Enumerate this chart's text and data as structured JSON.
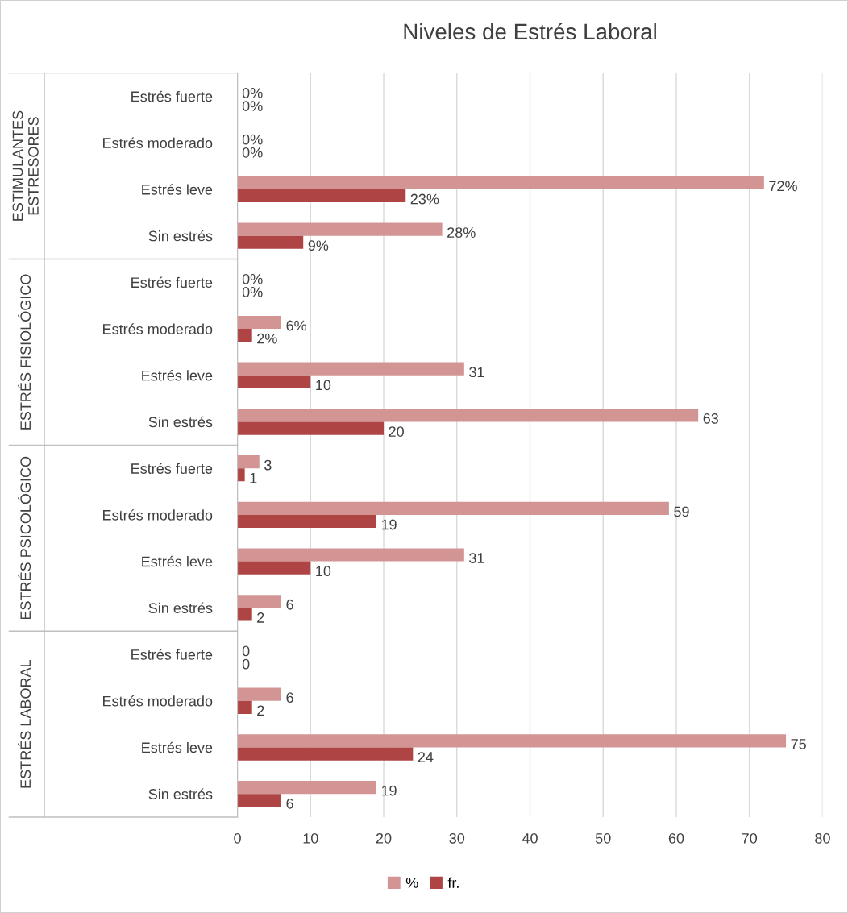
{
  "chart_data": {
    "type": "bar",
    "orientation": "horizontal",
    "title": "Niveles de Estrés Laboral",
    "categories": [
      "Estrés fuerte",
      "Estrés moderado",
      "Estrés leve",
      "Sin estrés",
      "Estrés fuerte",
      "Estrés moderado",
      "Estrés leve",
      "Sin estrés",
      "Estrés fuerte",
      "Estrés moderado",
      "Estrés leve",
      "Sin estrés",
      "Estrés fuerte",
      "Estrés moderado",
      "Estrés leve",
      "Sin estrés"
    ],
    "annotations": [
      "ESTIMULANTES ESTRESORES",
      "ESTRÉS FISIOLÓGICO",
      "ESTRÉS PSICOLÓGICO",
      "ESTRÉS LABORAL"
    ],
    "series": [
      {
        "name": "%",
        "color": "#d39494",
        "values": [
          0,
          0,
          72,
          28,
          0,
          6,
          31,
          63,
          3,
          59,
          31,
          6,
          0,
          6,
          75,
          19
        ],
        "value_labels": [
          "0%",
          "0%",
          "72%",
          "28%",
          "0%",
          "6%",
          "31",
          "63",
          "3",
          "59",
          "31",
          "6",
          "0",
          "6",
          "75",
          "19"
        ]
      },
      {
        "name": "fr.",
        "color": "#ae4444",
        "values": [
          0,
          0,
          23,
          9,
          0,
          2,
          10,
          20,
          1,
          19,
          10,
          2,
          0,
          2,
          24,
          6
        ],
        "value_labels": [
          "0%",
          "0%",
          "23%",
          "9%",
          "0%",
          "2%",
          "10",
          "20",
          "1",
          "19",
          "10",
          "2",
          "0",
          "2",
          "24",
          "6"
        ]
      }
    ],
    "xlim": [
      0,
      80
    ],
    "xticks": [
      0,
      10,
      20,
      30,
      40,
      50,
      60,
      70,
      80
    ],
    "grid": "x",
    "legend": "bottom"
  }
}
